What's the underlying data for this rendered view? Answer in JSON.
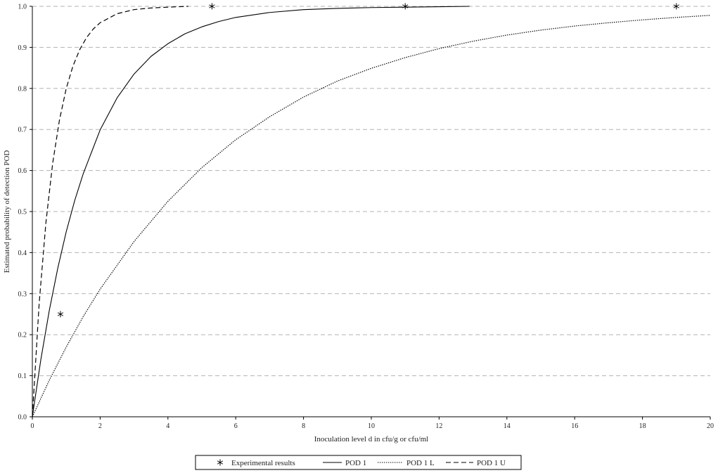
{
  "chart_data": {
    "type": "line",
    "xlabel": "Inoculation level d  in cfu/g or cfu/ml",
    "ylabel": "Estimated probability of detection POD",
    "xlim": [
      0,
      20
    ],
    "ylim": [
      0,
      1
    ],
    "x_ticks": [
      "0",
      "2",
      "4",
      "6",
      "8",
      "10",
      "12",
      "14",
      "16",
      "18",
      "20"
    ],
    "y_ticks": [
      "0.0",
      "0.1",
      "0.2",
      "0.3",
      "0.4",
      "0.5",
      "0.6",
      "0.7",
      "0.8",
      "0.9",
      "1.0"
    ],
    "grid": {
      "horizontal": true,
      "style": "dashed",
      "vertical": false
    },
    "legend_position": "bottom-center",
    "series": [
      {
        "name": "Experimental results",
        "kind": "markers",
        "marker": "asterisk",
        "x": [
          0.83,
          5.3,
          11.0,
          19.0
        ],
        "y": [
          0.25,
          1.0,
          1.0,
          1.0
        ]
      },
      {
        "name": "POD 1",
        "kind": "line",
        "dash": "solid",
        "x": [
          0,
          0.25,
          0.5,
          0.75,
          1.0,
          1.25,
          1.5,
          2.0,
          2.5,
          3.0,
          3.5,
          4.0,
          4.5,
          5.0,
          5.5,
          6.0,
          7.0,
          8.0,
          9.0,
          10.0,
          11.0,
          12.0,
          12.9
        ],
        "y": [
          0,
          0.139,
          0.259,
          0.362,
          0.451,
          0.527,
          0.592,
          0.699,
          0.777,
          0.835,
          0.878,
          0.909,
          0.933,
          0.95,
          0.963,
          0.973,
          0.985,
          0.992,
          0.995,
          0.997,
          0.998,
          0.999,
          1.0
        ]
      },
      {
        "name": "POD 1 L",
        "kind": "line",
        "dash": "dotted",
        "x": [
          0,
          0.5,
          1.0,
          1.5,
          2.0,
          3.0,
          4.0,
          5.0,
          6.0,
          7.0,
          8.0,
          9.0,
          10.0,
          11.0,
          12.0,
          13.0,
          14.0,
          15.0,
          16.0,
          17.0,
          18.0,
          19.0,
          20.0
        ],
        "y": [
          0,
          0.089,
          0.17,
          0.244,
          0.311,
          0.427,
          0.525,
          0.607,
          0.675,
          0.731,
          0.779,
          0.818,
          0.849,
          0.875,
          0.897,
          0.915,
          0.93,
          0.942,
          0.952,
          0.96,
          0.967,
          0.973,
          0.978
        ]
      },
      {
        "name": "POD 1 U",
        "kind": "line",
        "dash": "dashed",
        "x": [
          0,
          0.2,
          0.4,
          0.6,
          0.8,
          1.0,
          1.2,
          1.4,
          1.6,
          1.8,
          2.0,
          2.5,
          3.0,
          3.5,
          4.0,
          4.6
        ],
        "y": [
          0,
          0.275,
          0.473,
          0.618,
          0.723,
          0.8,
          0.855,
          0.895,
          0.924,
          0.945,
          0.96,
          0.982,
          0.992,
          0.996,
          0.998,
          1.0
        ]
      }
    ]
  }
}
